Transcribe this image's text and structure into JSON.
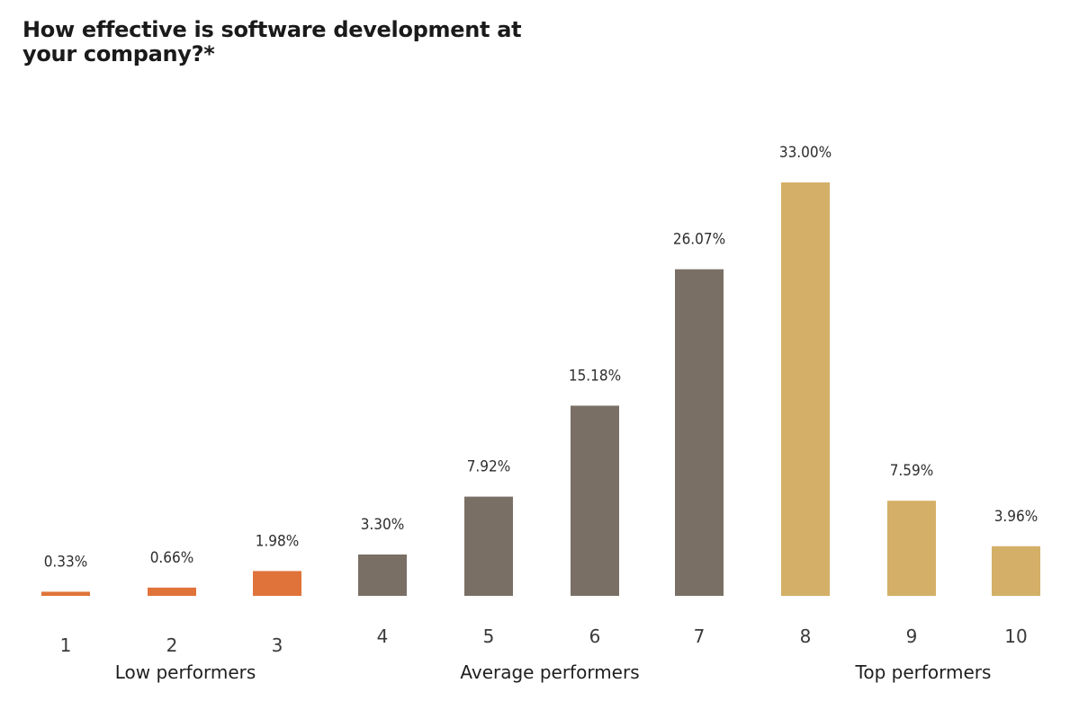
{
  "chart_data": {
    "type": "bar",
    "title": "How effective is software development at your company?*",
    "xlabel": "",
    "ylabel": "",
    "ylim": [
      0,
      33
    ],
    "grid": false,
    "categories": [
      "1",
      "2",
      "3",
      "4",
      "5",
      "6",
      "7",
      "8",
      "9",
      "10"
    ],
    "values": [
      0.33,
      0.66,
      1.98,
      3.3,
      7.92,
      15.18,
      26.07,
      33.0,
      7.59,
      3.96
    ],
    "value_labels": [
      "0.33%",
      "0.66%",
      "1.98%",
      "3.30%",
      "7.92%",
      "15.18%",
      "26.07%",
      "33.00%",
      "7.59%",
      "3.96%"
    ],
    "groups": [
      {
        "label": "Low performers",
        "categories": [
          "1",
          "2",
          "3"
        ],
        "color": "#E0733A"
      },
      {
        "label": "Average performers",
        "categories": [
          "4",
          "5",
          "6",
          "7"
        ],
        "color": "#7A6F65"
      },
      {
        "label": "Top performers",
        "categories": [
          "8",
          "9",
          "10"
        ],
        "color": "#D4AF67"
      }
    ]
  }
}
